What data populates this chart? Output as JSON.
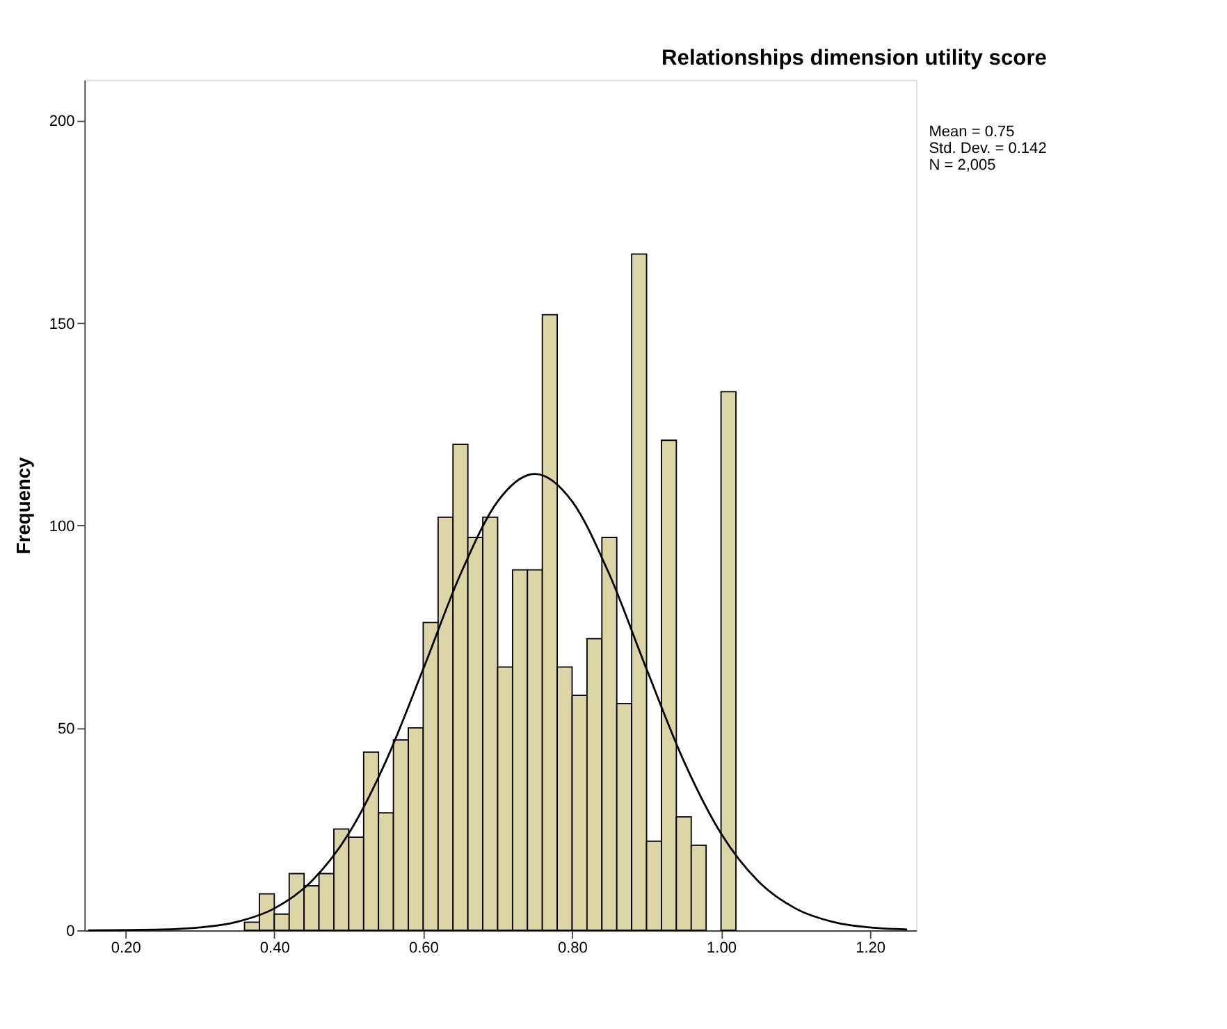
{
  "chart_data": {
    "type": "histogram",
    "title": "Relationships dimension utility score",
    "ylabel": "Frequency",
    "bins": [
      0.36,
      0.38,
      0.4,
      0.42,
      0.44,
      0.46,
      0.48,
      0.5,
      0.52,
      0.54,
      0.56,
      0.58,
      0.6,
      0.62,
      0.64,
      0.66,
      0.68,
      0.7,
      0.72,
      0.74,
      0.76,
      0.78,
      0.8,
      0.82,
      0.84,
      0.86,
      0.88,
      0.9,
      0.92,
      0.94,
      0.96,
      0.98,
      1.0,
      1.02
    ],
    "values": [
      2,
      9,
      4,
      14,
      11,
      14,
      25,
      23,
      44,
      29,
      47,
      50,
      76,
      102,
      120,
      97,
      102,
      65,
      89,
      89,
      152,
      65,
      58,
      72,
      97,
      56,
      167,
      22,
      121,
      28,
      21,
      0,
      133
    ],
    "color": "#dcd6a6",
    "series": [
      {
        "type": "line",
        "color": "#000000",
        "x": [
          0.15,
          0.25,
          0.3,
          0.35,
          0.4,
          0.45,
          0.5,
          0.55,
          0.6,
          0.65,
          0.7,
          0.75,
          0.8,
          0.85,
          0.9,
          0.95,
          1.0,
          1.05,
          1.1,
          1.15,
          1.2,
          1.25
        ],
        "values": [
          0,
          0.2,
          0.7,
          2.1,
          5.4,
          12.1,
          23.9,
          41.8,
          64.5,
          87.9,
          105.9,
          112.7,
          105.9,
          87.9,
          64.5,
          41.8,
          23.9,
          12.1,
          5.4,
          2.1,
          0.7,
          0.2
        ]
      }
    ],
    "xlim": [
      0.145,
      1.262
    ],
    "ylim": [
      0,
      210
    ],
    "xticks": [
      {
        "value": 0.2,
        "label": "0.20"
      },
      {
        "value": 0.4,
        "label": "0.40"
      },
      {
        "value": 0.6,
        "label": "0.60"
      },
      {
        "value": 0.8,
        "label": "0.80"
      },
      {
        "value": 1.0,
        "label": "1.00"
      },
      {
        "value": 1.2,
        "label": "1.20"
      }
    ],
    "yticks": [
      0,
      50,
      100,
      150,
      200
    ],
    "grid": false,
    "legend": false,
    "annotations": [
      "Mean = 0.75",
      "Std. Dev. = 0.142",
      "N = 2,005"
    ]
  }
}
